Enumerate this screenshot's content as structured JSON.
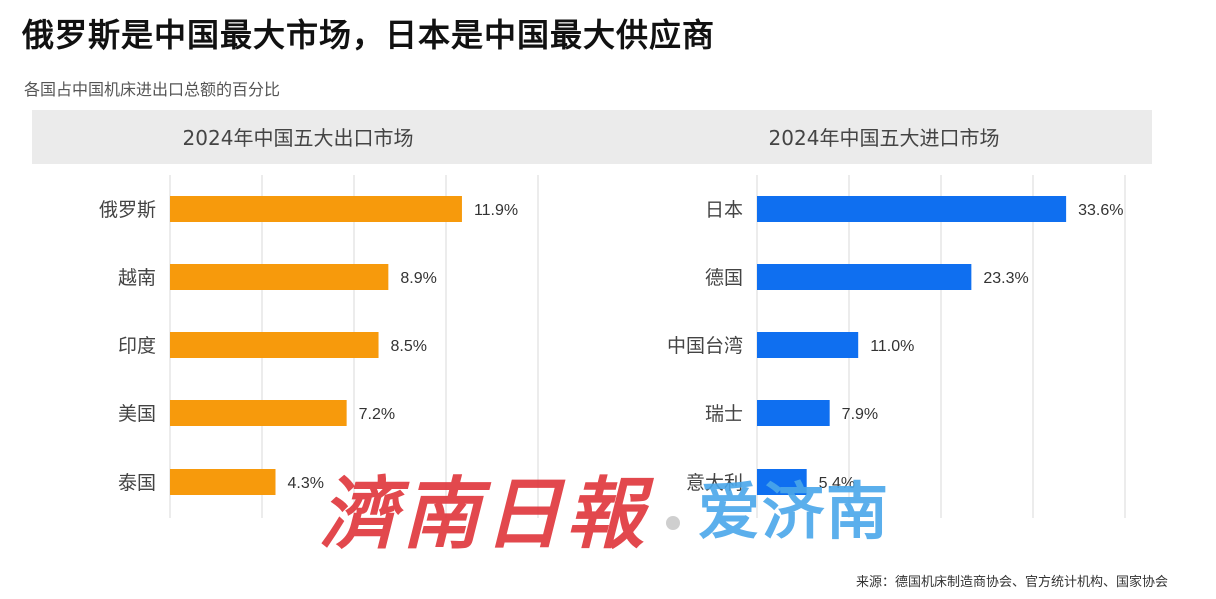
{
  "title": "俄罗斯是中国最大市场，日本是中国最大供应商",
  "subtitle": "各国占中国机床进出口总额的百分比",
  "source": "来源：德国机床制造商协会、官方统计机构、国家协会",
  "watermark": {
    "brush_text": "濟南日報",
    "blue_text": "爱济南"
  },
  "colors": {
    "export_bar": "#f79a0c",
    "import_bar": "#0f6ff0",
    "grid": "#d9d9d9",
    "header_band": "#ebebeb"
  },
  "chart_data": [
    {
      "type": "bar",
      "orientation": "horizontal",
      "title": "2024年中国五大出口市场",
      "categories": [
        "俄罗斯",
        "越南",
        "印度",
        "美国",
        "泰国"
      ],
      "values": [
        11.9,
        8.9,
        8.5,
        7.2,
        4.3
      ],
      "labels": [
        "11.9%",
        "8.9%",
        "8.5%",
        "7.2%",
        "4.3%"
      ],
      "xlim": [
        0,
        15
      ],
      "grid": true
    },
    {
      "type": "bar",
      "orientation": "horizontal",
      "title": "2024年中国五大进口市场",
      "categories": [
        "日本",
        "德国",
        "中国台湾",
        "瑞士",
        "意大利"
      ],
      "values": [
        33.6,
        23.3,
        11.0,
        7.9,
        5.4
      ],
      "labels": [
        "33.6%",
        "23.3%",
        "11.0%",
        "7.9%",
        "5.4%"
      ],
      "xlim": [
        0,
        40
      ],
      "grid": true
    }
  ]
}
